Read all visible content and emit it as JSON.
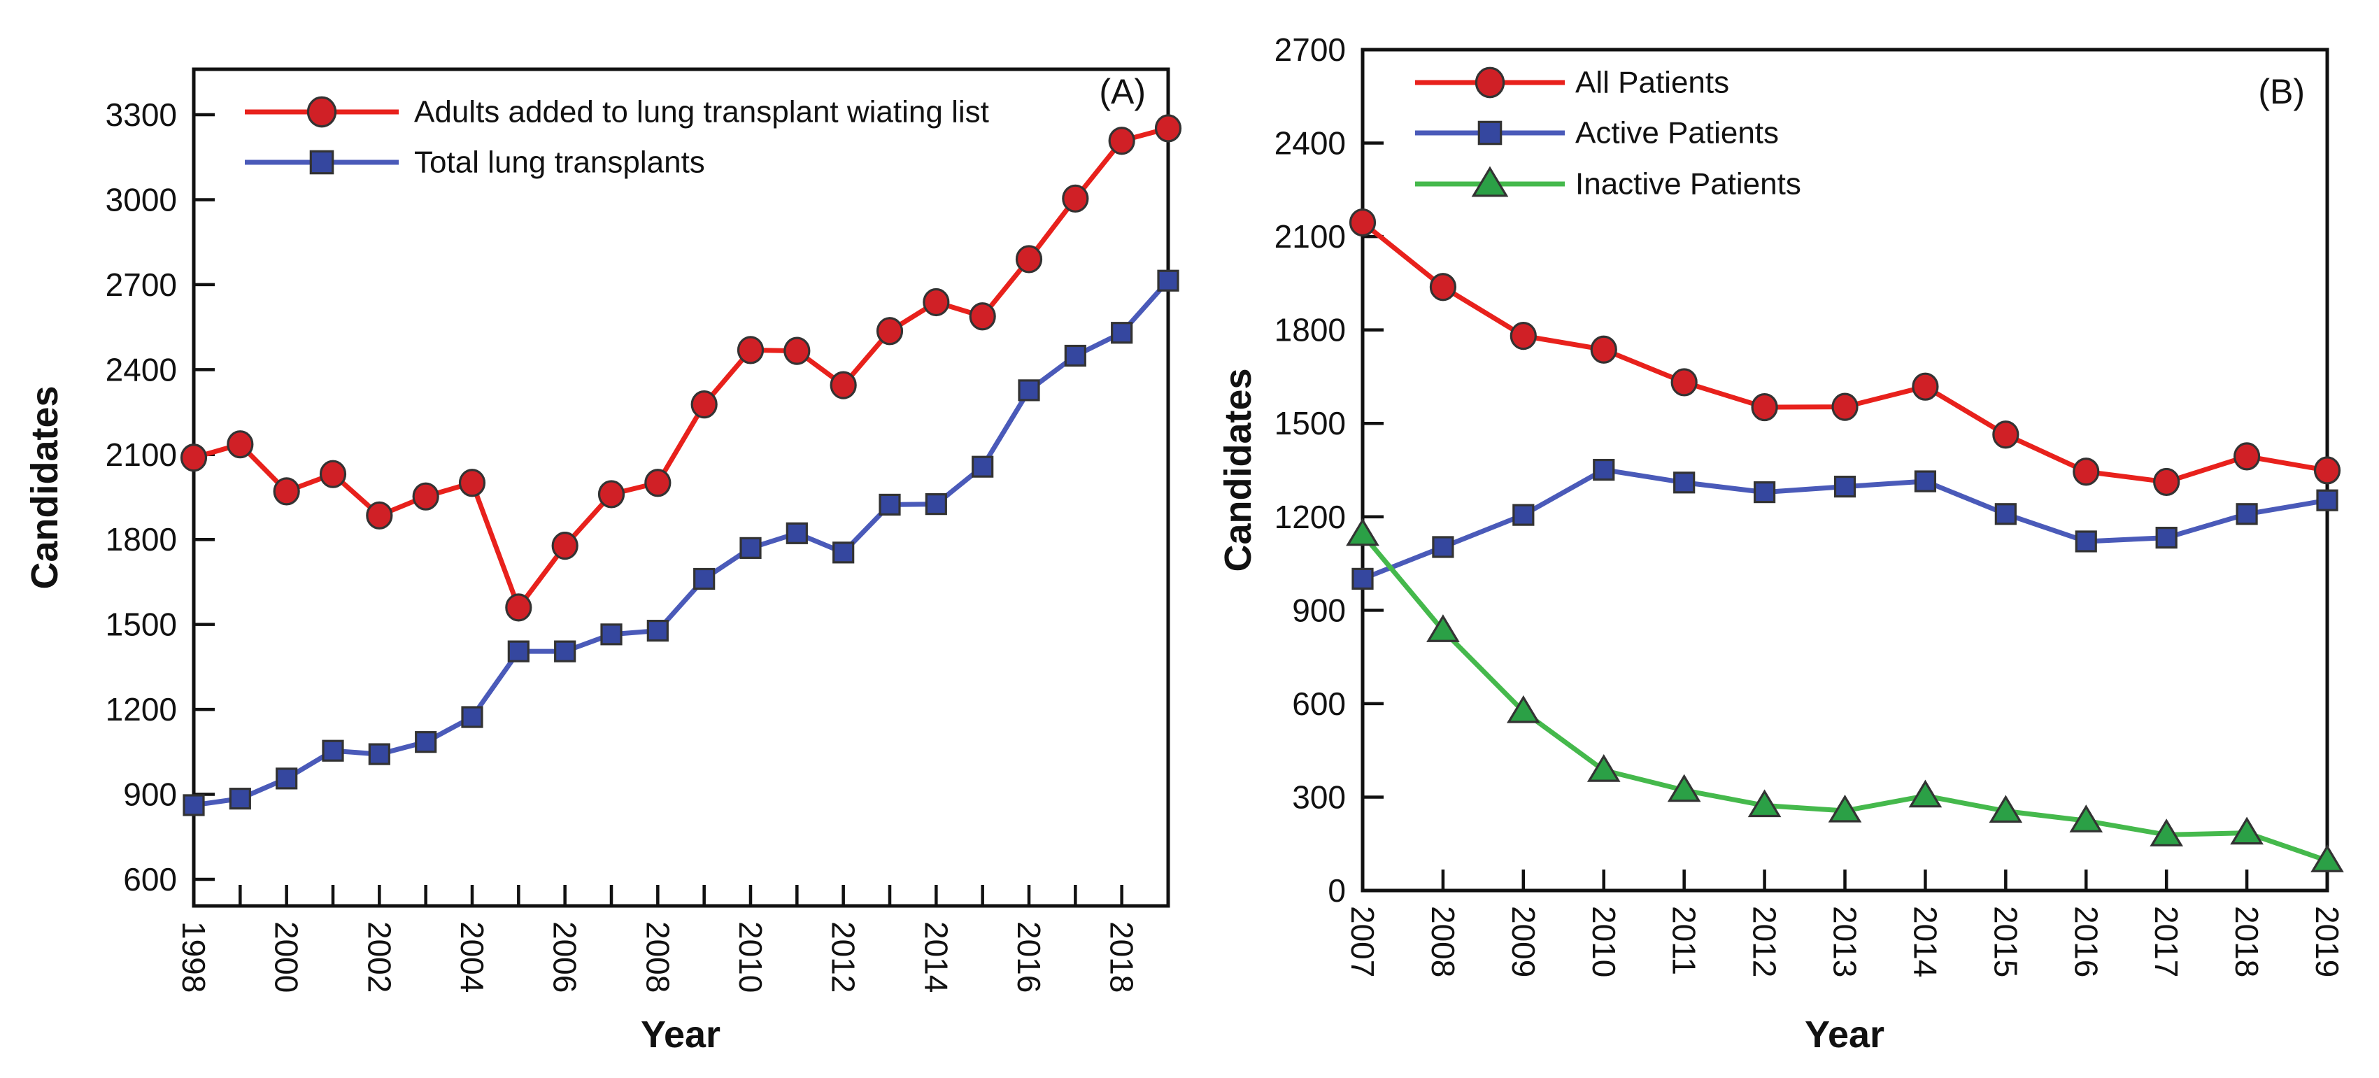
{
  "figure": {
    "background": "#ffffff",
    "axis_color": "#111111",
    "panel_a_corner_label": "(A)",
    "panel_b_corner_label": "(B)"
  },
  "chart_data": [
    {
      "id": "A",
      "type": "line",
      "corner_label": "(A)",
      "xlabel": "Year",
      "ylabel": "Candidates",
      "x": [
        1998,
        1999,
        2000,
        2001,
        2002,
        2003,
        2004,
        2005,
        2006,
        2007,
        2008,
        2009,
        2010,
        2011,
        2012,
        2013,
        2014,
        2015,
        2016,
        2017,
        2018,
        2019
      ],
      "x_tick_labels": [
        "1998",
        "2000",
        "2002",
        "2004",
        "2006",
        "2008",
        "2010",
        "2012",
        "2014",
        "2016",
        "2018"
      ],
      "x_label_every": 2,
      "ylim": [
        600,
        3300
      ],
      "ytick_step": 300,
      "yticks": [
        600,
        900,
        1200,
        1500,
        1800,
        2100,
        2400,
        2700,
        3000,
        3300
      ],
      "grid": false,
      "legend_position": "top-left-inside",
      "series": [
        {
          "name": "Adults added to lung transplant wiating list",
          "marker": "circle",
          "line_color": "#e8211c",
          "marker_color": "#d02026",
          "values": [
            2089,
            2136,
            1970,
            2031,
            1885,
            1952,
            2000,
            1560,
            1778,
            1960,
            2000,
            2277,
            2469,
            2466,
            2345,
            2536,
            2638,
            2588,
            2790,
            3004,
            3208,
            3252
          ]
        },
        {
          "name": "Total lung transplants",
          "marker": "square",
          "line_color": "#4a5ab9",
          "marker_color": "#35479f",
          "values": [
            862,
            885,
            956,
            1054,
            1042,
            1085,
            1173,
            1405,
            1405,
            1465,
            1478,
            1661,
            1770,
            1822,
            1754,
            1923,
            1925,
            2057,
            2327,
            2449,
            2530,
            2714
          ]
        }
      ]
    },
    {
      "id": "B",
      "type": "line",
      "corner_label": "(B)",
      "xlabel": "Year",
      "ylabel": "Candidates",
      "x": [
        2007,
        2008,
        2009,
        2010,
        2011,
        2012,
        2013,
        2014,
        2015,
        2016,
        2017,
        2018,
        2019
      ],
      "x_tick_labels": [
        "2007",
        "2008",
        "2009",
        "2010",
        "2011",
        "2012",
        "2013",
        "2014",
        "2015",
        "2016",
        "2017",
        "2018",
        "2019"
      ],
      "x_label_every": 1,
      "ylim": [
        0,
        2700
      ],
      "ytick_step": 300,
      "yticks": [
        0,
        300,
        600,
        900,
        1200,
        1500,
        1800,
        2100,
        2400,
        2700
      ],
      "grid": false,
      "legend_position": "top-left-inside",
      "series": [
        {
          "name": "All  Patients",
          "marker": "circle",
          "line_color": "#e8211c",
          "marker_color": "#d02026",
          "values": [
            2145,
            1938,
            1781,
            1737,
            1632,
            1552,
            1553,
            1618,
            1464,
            1345,
            1312,
            1394,
            1349
          ]
        },
        {
          "name": "Active  Patients",
          "marker": "square",
          "line_color": "#4a5ab9",
          "marker_color": "#35479f",
          "values": [
            1001,
            1103,
            1206,
            1351,
            1310,
            1279,
            1297,
            1314,
            1209,
            1121,
            1133,
            1209,
            1253
          ]
        },
        {
          "name": "Inactive Patients",
          "marker": "triangle",
          "line_color": "#45b94c",
          "marker_color": "#2ba046",
          "values": [
            1144,
            835,
            575,
            386,
            322,
            273,
            256,
            304,
            255,
            224,
            179,
            185,
            96
          ]
        }
      ]
    }
  ]
}
